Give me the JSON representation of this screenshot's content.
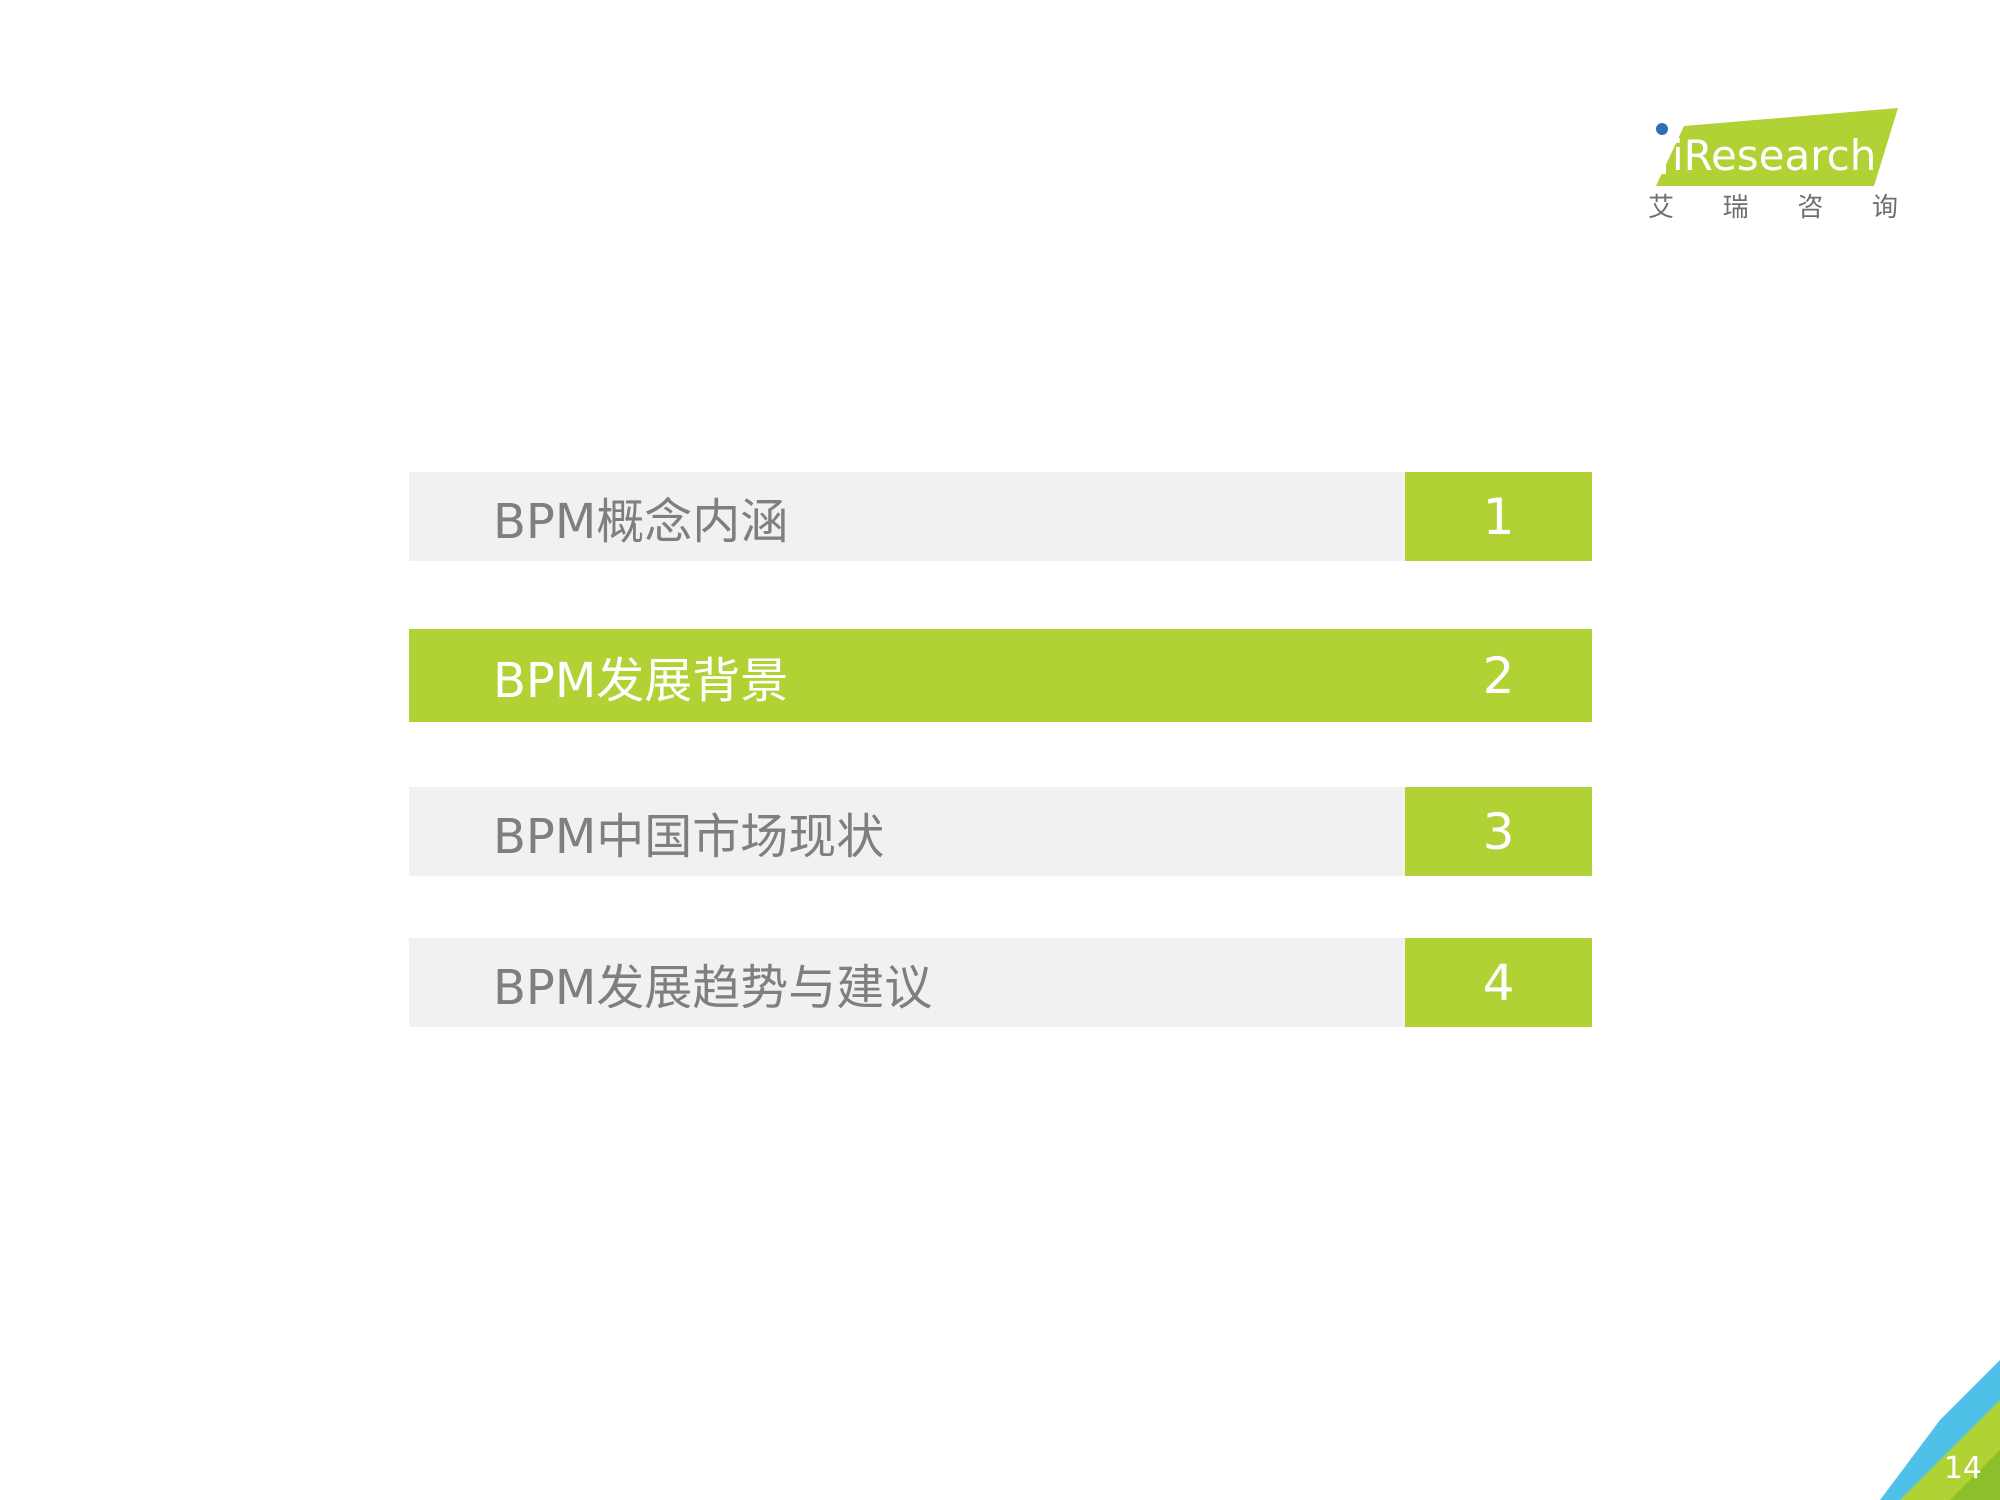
{
  "brand": {
    "logo_text": "iResearch",
    "logo_cn": [
      "艾",
      "瑞",
      "咨",
      "询"
    ],
    "accent_color": "#b1d235",
    "secondary_color": "#4fc1e9",
    "dot_color": "#2f6db5"
  },
  "agenda": {
    "items": [
      {
        "label": "BPM概念内涵",
        "number": "1",
        "active": false
      },
      {
        "label": "BPM发展背景",
        "number": "2",
        "active": true
      },
      {
        "label": "BPM中国市场现状",
        "number": "3",
        "active": false
      },
      {
        "label": "BPM发展趋势与建议",
        "number": "4",
        "active": false
      }
    ]
  },
  "footer": {
    "page_number": "14"
  }
}
